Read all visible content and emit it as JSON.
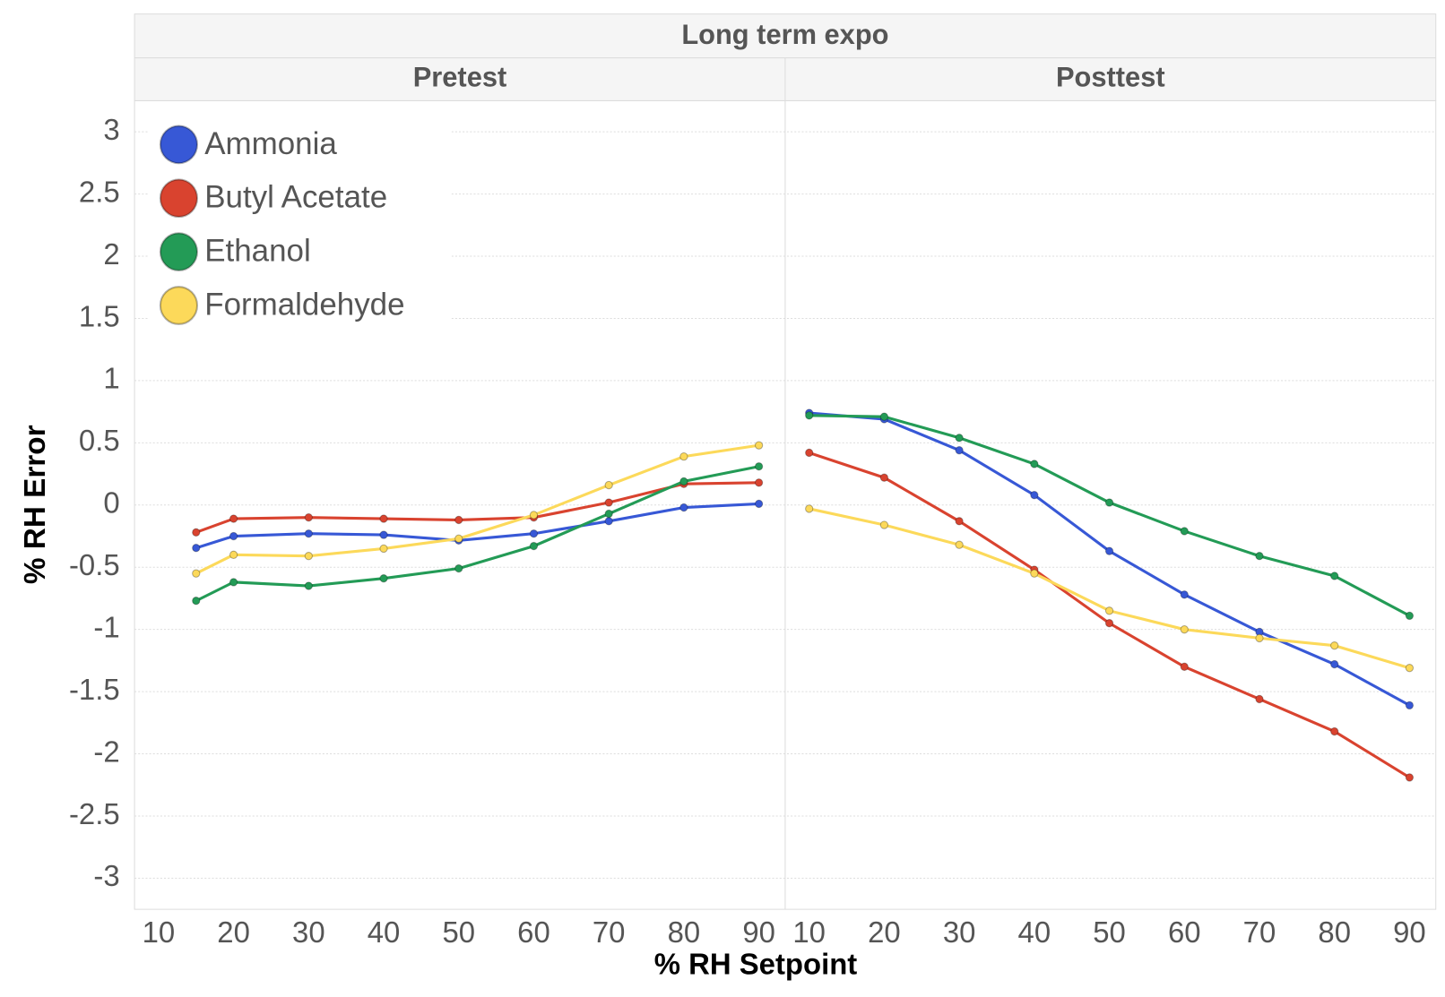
{
  "chart_data": {
    "type": "line",
    "title": "Long term expo",
    "xlabel": "% RH Setpoint",
    "ylabel": "% RH Error",
    "xlim": [
      6.8,
      93.5
    ],
    "xticks": [
      10,
      20,
      30,
      40,
      50,
      60,
      70,
      80,
      90
    ],
    "ylim": [
      -3.25,
      3.25
    ],
    "yticks": [
      -3,
      -2.5,
      -2,
      -1.5,
      -1,
      -0.5,
      0,
      0.5,
      1,
      1.5,
      2,
      2.5,
      3
    ],
    "grid": true,
    "legend": "top-left",
    "panels": [
      {
        "title": "Pretest",
        "x": [
          15,
          20,
          30,
          40,
          50,
          60,
          70,
          80,
          90
        ]
      },
      {
        "title": "Posttest",
        "x": [
          10,
          20,
          30,
          40,
          50,
          60,
          70,
          80,
          90
        ]
      }
    ],
    "series": [
      {
        "name": "Ammonia",
        "color": "#3758d6",
        "values": [
          [
            -0.345,
            -0.25,
            -0.23,
            -0.24,
            -0.285,
            -0.23,
            -0.13,
            -0.02,
            0.01
          ],
          [
            0.74,
            0.69,
            0.44,
            0.08,
            -0.37,
            -0.72,
            -1.02,
            -1.28,
            -1.61
          ]
        ]
      },
      {
        "name": "Butyl Acetate",
        "color": "#d9432f",
        "values": [
          [
            -0.22,
            -0.11,
            -0.1,
            -0.11,
            -0.12,
            -0.1,
            0.02,
            0.17,
            0.18
          ],
          [
            0.42,
            0.22,
            -0.13,
            -0.52,
            -0.95,
            -1.3,
            -1.56,
            -1.82,
            -2.19
          ]
        ]
      },
      {
        "name": "Ethanol",
        "color": "#239b56",
        "values": [
          [
            -0.77,
            -0.62,
            -0.65,
            -0.59,
            -0.51,
            -0.33,
            -0.07,
            0.19,
            0.31
          ],
          [
            0.72,
            0.71,
            0.54,
            0.33,
            0.02,
            -0.21,
            -0.41,
            -0.57,
            -0.89
          ]
        ]
      },
      {
        "name": "Formaldehyde",
        "color": "#fcd95a",
        "values": [
          [
            -0.55,
            -0.4,
            -0.41,
            -0.35,
            -0.27,
            -0.08,
            0.16,
            0.39,
            0.48
          ],
          [
            -0.03,
            -0.16,
            -0.32,
            -0.55,
            -0.85,
            -1.0,
            -1.07,
            -1.13,
            -1.31
          ]
        ]
      }
    ]
  }
}
